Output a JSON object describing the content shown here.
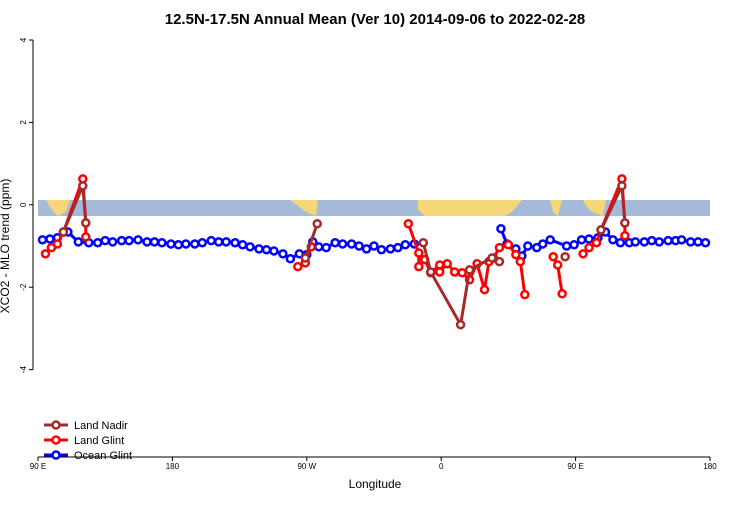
{
  "chart_data": {
    "type": "line",
    "title": "12.5N-17.5N Annual Mean (Ver 10)   2014-09-06 to 2022-02-28",
    "xlabel": "Longitude",
    "ylabel": "XCO2 - MLO trend (ppm)",
    "xlim": [
      90,
      540
    ],
    "ylim": [
      -6,
      4
    ],
    "xticks": [
      {
        "value": 90,
        "label": "90 E"
      },
      {
        "value": 180,
        "label": "180"
      },
      {
        "value": 270,
        "label": "90 W"
      },
      {
        "value": 360,
        "label": "0"
      },
      {
        "value": 450,
        "label": "90 E"
      },
      {
        "value": 540,
        "label": "180"
      }
    ],
    "yticks": [
      -4,
      -2,
      0,
      2,
      4
    ],
    "legend": "bottom-left",
    "series": [
      {
        "name": "Land Nadir",
        "color": "#a52a2a",
        "x": [
          107,
          120,
          122,
          200,
          269,
          277,
          310,
          348,
          353,
          373,
          379,
          394,
          399,
          420,
          443,
          455,
          467,
          481,
          483
        ],
        "values": [
          -0.66,
          0.46,
          -0.44,
          null,
          -1.29,
          -0.46,
          null,
          -0.92,
          -1.63,
          -2.91,
          -1.58,
          -1.29,
          -1.38,
          null,
          -1.26,
          null,
          -0.61,
          0.46,
          -0.44
        ]
      },
      {
        "name": "Land Glint",
        "color": "#ff0000",
        "x": [
          95,
          99,
          103,
          107,
          120,
          122,
          122,
          200,
          264,
          269,
          273,
          300,
          338,
          345,
          345,
          349,
          353,
          359,
          359,
          364,
          369,
          374,
          379,
          384,
          389,
          392,
          395,
          399,
          405,
          410,
          413,
          416,
          425,
          435,
          438,
          441,
          450,
          455,
          459,
          464,
          467,
          481,
          483,
          483
        ],
        "values": [
          -1.19,
          -1.04,
          -0.95,
          -0.66,
          0.63,
          -0.44,
          -0.78,
          null,
          -1.5,
          -1.41,
          -1.02,
          null,
          -0.46,
          -1.17,
          -1.5,
          -1.33,
          -1.65,
          -1.46,
          -1.63,
          -1.43,
          -1.63,
          -1.65,
          -1.82,
          -1.43,
          -2.06,
          -1.38,
          -1.29,
          -1.04,
          -0.97,
          -1.21,
          -1.38,
          -2.18,
          null,
          -1.26,
          -1.46,
          -2.16,
          null,
          -1.19,
          -1.04,
          -0.92,
          -0.61,
          0.63,
          -0.44,
          -0.75
        ]
      },
      {
        "name": "Ocean Glint",
        "color": "#0000ff",
        "x": [
          93,
          98,
          103,
          110,
          117,
          124,
          130,
          135,
          140,
          146,
          151,
          157,
          163,
          168,
          173,
          179,
          184,
          189,
          195,
          200,
          206,
          211,
          216,
          222,
          227,
          232,
          238,
          243,
          248,
          254,
          259,
          265,
          270,
          274,
          278,
          283,
          289,
          294,
          300,
          305,
          310,
          315,
          320,
          326,
          331,
          336,
          342,
          370,
          400,
          404,
          410,
          414,
          418,
          424,
          428,
          433,
          444,
          449,
          454,
          459,
          465,
          470,
          475,
          480,
          486,
          490,
          496,
          501,
          506,
          512,
          517,
          521,
          527,
          532,
          537
        ],
        "values": [
          -0.85,
          -0.83,
          -0.8,
          -0.66,
          -0.9,
          -0.92,
          -0.92,
          -0.87,
          -0.9,
          -0.87,
          -0.87,
          -0.85,
          -0.9,
          -0.9,
          -0.92,
          -0.95,
          -0.97,
          -0.95,
          -0.95,
          -0.92,
          -0.87,
          -0.9,
          -0.9,
          -0.92,
          -0.97,
          -1.02,
          -1.07,
          -1.09,
          -1.12,
          -1.19,
          -1.31,
          -1.19,
          -1.21,
          -0.9,
          -1.02,
          -1.04,
          -0.92,
          -0.95,
          -0.95,
          -1.0,
          -1.07,
          -1.0,
          -1.09,
          -1.07,
          -1.04,
          -0.97,
          -0.95,
          null,
          -0.58,
          -0.95,
          -1.07,
          -1.24,
          -1.0,
          -1.04,
          -0.95,
          -0.85,
          -1.0,
          -0.97,
          -0.85,
          -0.83,
          -0.8,
          -0.66,
          -0.85,
          -0.92,
          -0.92,
          -0.9,
          -0.9,
          -0.87,
          -0.9,
          -0.87,
          -0.87,
          -0.85,
          -0.9,
          -0.9,
          -0.92
        ]
      }
    ]
  }
}
